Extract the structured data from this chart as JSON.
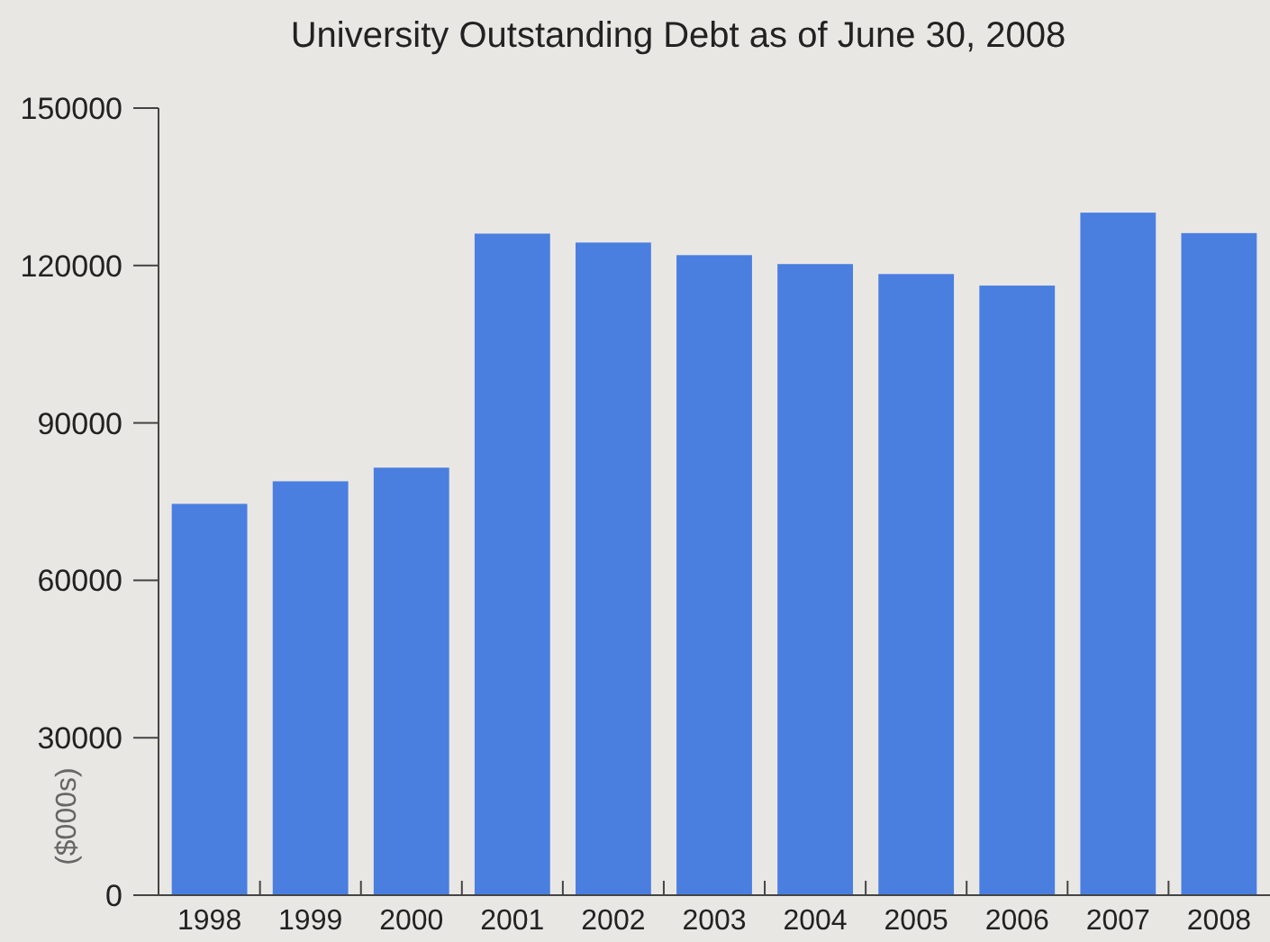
{
  "chart_data": {
    "type": "bar",
    "title": "University Outstanding Debt as of June 30, 2008",
    "ylabel": "($000s)",
    "categories": [
      "1998",
      "1999",
      "2000",
      "2001",
      "2002",
      "2003",
      "2004",
      "2005",
      "2006",
      "2007",
      "2008"
    ],
    "values": [
      74400,
      78700,
      81300,
      125900,
      124200,
      121800,
      120100,
      118200,
      116000,
      129900,
      126000
    ],
    "color": "#4a7fe0",
    "ylim": [
      0,
      150000
    ],
    "yticks": [
      0,
      30000,
      60000,
      90000,
      120000,
      150000
    ],
    "grid": false
  }
}
